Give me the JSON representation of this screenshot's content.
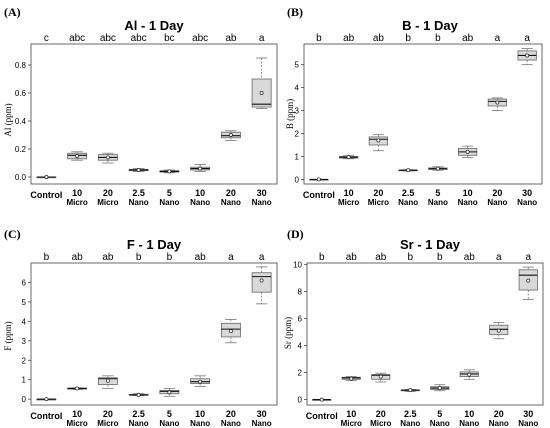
{
  "chart_data": [
    {
      "type": "boxplot",
      "panel_label": "(A)",
      "title": "Al - 1 Day",
      "ylabel": "Al (ppm)",
      "ylim": [
        -0.05,
        0.95
      ],
      "yticks": [
        0.0,
        0.2,
        0.4,
        0.6,
        0.8
      ],
      "ytick_labels": [
        "0.0",
        "0.2",
        "0.4",
        "0.6",
        "0.8"
      ],
      "categories": [
        {
          "num": "Control",
          "sub": ""
        },
        {
          "num": "10",
          "sub": "Micro"
        },
        {
          "num": "20",
          "sub": "Micro"
        },
        {
          "num": "2.5",
          "sub": "Nano"
        },
        {
          "num": "5",
          "sub": "Nano"
        },
        {
          "num": "10",
          "sub": "Nano"
        },
        {
          "num": "20",
          "sub": "Nano"
        },
        {
          "num": "30",
          "sub": "Nano"
        }
      ],
      "significance": [
        "c",
        "abc",
        "abc",
        "abc",
        "bc",
        "abc",
        "ab",
        "a"
      ],
      "boxes": [
        {
          "min": 0.0,
          "q1": 0.0,
          "median": 0.0,
          "q3": 0.0,
          "max": 0.0,
          "mean": 0.0
        },
        {
          "min": 0.12,
          "q1": 0.13,
          "median": 0.155,
          "q3": 0.17,
          "max": 0.18,
          "mean": 0.15
        },
        {
          "min": 0.1,
          "q1": 0.12,
          "median": 0.14,
          "q3": 0.16,
          "max": 0.17,
          "mean": 0.14
        },
        {
          "min": 0.04,
          "q1": 0.045,
          "median": 0.05,
          "q3": 0.055,
          "max": 0.06,
          "mean": 0.05
        },
        {
          "min": 0.03,
          "q1": 0.035,
          "median": 0.04,
          "q3": 0.045,
          "max": 0.05,
          "mean": 0.04
        },
        {
          "min": 0.04,
          "q1": 0.05,
          "median": 0.06,
          "q3": 0.07,
          "max": 0.09,
          "mean": 0.06
        },
        {
          "min": 0.26,
          "q1": 0.28,
          "median": 0.295,
          "q3": 0.32,
          "max": 0.33,
          "mean": 0.3
        },
        {
          "min": 0.49,
          "q1": 0.5,
          "median": 0.52,
          "q3": 0.7,
          "max": 0.85,
          "mean": 0.6
        }
      ]
    },
    {
      "type": "boxplot",
      "panel_label": "(B)",
      "title": "B - 1 Day",
      "ylabel": "B (ppm)",
      "ylim": [
        -0.2,
        5.9
      ],
      "yticks": [
        0,
        1,
        2,
        3,
        4,
        5
      ],
      "ytick_labels": [
        "0",
        "1",
        "2",
        "3",
        "4",
        "5"
      ],
      "categories": [
        {
          "num": "Control",
          "sub": ""
        },
        {
          "num": "10",
          "sub": "Micro"
        },
        {
          "num": "20",
          "sub": "Micro"
        },
        {
          "num": "2.5",
          "sub": "Nano"
        },
        {
          "num": "5",
          "sub": "Nano"
        },
        {
          "num": "10",
          "sub": "Nano"
        },
        {
          "num": "20",
          "sub": "Nano"
        },
        {
          "num": "30",
          "sub": "Nano"
        }
      ],
      "significance": [
        "b",
        "ab",
        "ab",
        "b",
        "b",
        "ab",
        "a",
        "a"
      ],
      "boxes": [
        {
          "min": 0.0,
          "q1": 0.0,
          "median": 0.0,
          "q3": 0.0,
          "max": 0.0,
          "mean": 0.0
        },
        {
          "min": 0.9,
          "q1": 0.93,
          "median": 0.97,
          "q3": 1.0,
          "max": 1.05,
          "mean": 0.97
        },
        {
          "min": 1.25,
          "q1": 1.5,
          "median": 1.75,
          "q3": 1.85,
          "max": 1.95,
          "mean": 1.7
        },
        {
          "min": 0.37,
          "q1": 0.38,
          "median": 0.4,
          "q3": 0.41,
          "max": 0.42,
          "mean": 0.4
        },
        {
          "min": 0.4,
          "q1": 0.43,
          "median": 0.47,
          "q3": 0.5,
          "max": 0.55,
          "mean": 0.47
        },
        {
          "min": 0.95,
          "q1": 1.05,
          "median": 1.2,
          "q3": 1.35,
          "max": 1.45,
          "mean": 1.2
        },
        {
          "min": 3.0,
          "q1": 3.2,
          "median": 3.4,
          "q3": 3.5,
          "max": 3.55,
          "mean": 3.35
        },
        {
          "min": 5.0,
          "q1": 5.2,
          "median": 5.4,
          "q3": 5.6,
          "max": 5.7,
          "mean": 5.4
        }
      ]
    },
    {
      "type": "boxplot",
      "panel_label": "(C)",
      "title": "F - 1 Day",
      "ylabel": "F (ppm)",
      "ylim": [
        -0.3,
        7.0
      ],
      "yticks": [
        0,
        1,
        2,
        3,
        4,
        5,
        6
      ],
      "ytick_labels": [
        "0",
        "1",
        "2",
        "3",
        "4",
        "5",
        "6"
      ],
      "categories": [
        {
          "num": "Control",
          "sub": ""
        },
        {
          "num": "10",
          "sub": "Micro"
        },
        {
          "num": "20",
          "sub": "Micro"
        },
        {
          "num": "2.5",
          "sub": "Nano"
        },
        {
          "num": "5",
          "sub": "Nano"
        },
        {
          "num": "10",
          "sub": "Nano"
        },
        {
          "num": "20",
          "sub": "Nano"
        },
        {
          "num": "30",
          "sub": "Nano"
        }
      ],
      "significance": [
        "b",
        "ab",
        "ab",
        "b",
        "b",
        "ab",
        "a",
        "a"
      ],
      "boxes": [
        {
          "min": 0.0,
          "q1": 0.0,
          "median": 0.0,
          "q3": 0.0,
          "max": 0.0,
          "mean": 0.0
        },
        {
          "min": 0.5,
          "q1": 0.52,
          "median": 0.55,
          "q3": 0.57,
          "max": 0.58,
          "mean": 0.55
        },
        {
          "min": 0.55,
          "q1": 0.75,
          "median": 1.05,
          "q3": 1.1,
          "max": 1.2,
          "mean": 0.95
        },
        {
          "min": 0.18,
          "q1": 0.2,
          "median": 0.22,
          "q3": 0.25,
          "max": 0.28,
          "mean": 0.22
        },
        {
          "min": 0.15,
          "q1": 0.28,
          "median": 0.4,
          "q3": 0.45,
          "max": 0.55,
          "mean": 0.35
        },
        {
          "min": 0.65,
          "q1": 0.8,
          "median": 0.9,
          "q3": 1.05,
          "max": 1.2,
          "mean": 0.9
        },
        {
          "min": 2.9,
          "q1": 3.2,
          "median": 3.6,
          "q3": 3.9,
          "max": 4.1,
          "mean": 3.5
        },
        {
          "min": 4.9,
          "q1": 5.5,
          "median": 6.3,
          "q3": 6.5,
          "max": 6.8,
          "mean": 6.1
        }
      ]
    },
    {
      "type": "boxplot",
      "panel_label": "(D)",
      "title": "Sr - 1 Day",
      "ylabel": "Sr (ppm)",
      "ylim": [
        -0.4,
        10.1
      ],
      "yticks": [
        0,
        2,
        4,
        6,
        8,
        10
      ],
      "ytick_labels": [
        "0",
        "2",
        "4",
        "6",
        "8",
        "10"
      ],
      "categories": [
        {
          "num": "Control",
          "sub": ""
        },
        {
          "num": "10",
          "sub": "Micro"
        },
        {
          "num": "20",
          "sub": "Micro"
        },
        {
          "num": "2.5",
          "sub": "Nano"
        },
        {
          "num": "5",
          "sub": "Nano"
        },
        {
          "num": "10",
          "sub": "Nano"
        },
        {
          "num": "20",
          "sub": "Nano"
        },
        {
          "num": "30",
          "sub": "Nano"
        }
      ],
      "significance": [
        "b",
        "ab",
        "ab",
        "b",
        "b",
        "ab",
        "a",
        "a"
      ],
      "boxes": [
        {
          "min": 0.0,
          "q1": 0.0,
          "median": 0.0,
          "q3": 0.0,
          "max": 0.0,
          "mean": 0.0
        },
        {
          "min": 1.4,
          "q1": 1.5,
          "median": 1.6,
          "q3": 1.65,
          "max": 1.7,
          "mean": 1.55
        },
        {
          "min": 1.3,
          "q1": 1.5,
          "median": 1.8,
          "q3": 1.85,
          "max": 1.95,
          "mean": 1.7
        },
        {
          "min": 0.6,
          "q1": 0.65,
          "median": 0.7,
          "q3": 0.72,
          "max": 0.75,
          "mean": 0.7
        },
        {
          "min": 0.65,
          "q1": 0.75,
          "median": 0.85,
          "q3": 0.95,
          "max": 1.1,
          "mean": 0.85
        },
        {
          "min": 1.5,
          "q1": 1.7,
          "median": 1.9,
          "q3": 2.05,
          "max": 2.2,
          "mean": 1.85
        },
        {
          "min": 4.5,
          "q1": 4.8,
          "median": 5.2,
          "q3": 5.5,
          "max": 5.7,
          "mean": 5.1
        },
        {
          "min": 7.4,
          "q1": 8.1,
          "median": 9.2,
          "q3": 9.6,
          "max": 9.8,
          "mean": 8.8
        }
      ]
    }
  ]
}
